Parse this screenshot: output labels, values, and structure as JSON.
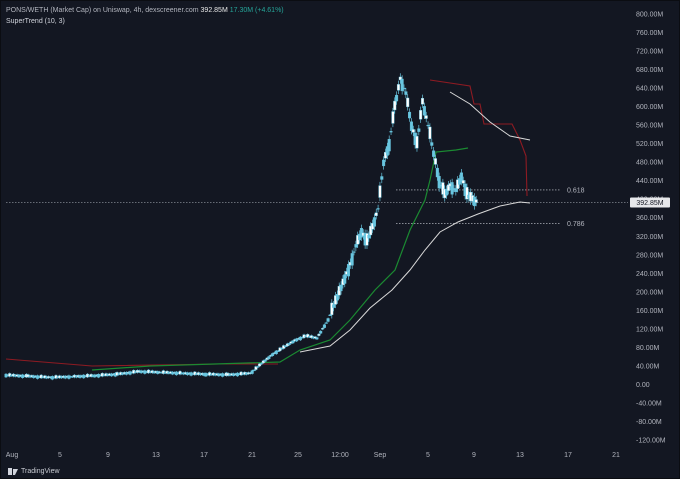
{
  "header": {
    "pair": "PONS/WETH (Market Cap) on Uniswap, 4h, dexscreener.com",
    "price": "392.85M",
    "change": "17.30M (+4.61%)",
    "indicator": "SuperTrend (10, 3)"
  },
  "footer": {
    "brand": "TradingView"
  },
  "colors": {
    "background": "#131722",
    "candle": "#69c6e0",
    "supertrend_up": "#1b8a32",
    "supertrend_down": "#8e1b23",
    "ma": "#d9d9d9",
    "fib": "#cfd3da"
  },
  "chart_data": {
    "type": "candlestick",
    "y_unit": "M",
    "y_ticks": [
      "800.00M",
      "760.00M",
      "720.00M",
      "680.00M",
      "640.00M",
      "600.00M",
      "560.00M",
      "520.00M",
      "480.00M",
      "440.00M",
      "400.00M",
      "360.00M",
      "320.00M",
      "280.00M",
      "240.00M",
      "200.00M",
      "160.00M",
      "120.00M",
      "80.00M",
      "40.00M",
      "0.00",
      "-40.00M",
      "-80.00M",
      "-120.00M"
    ],
    "ylim": [
      -120,
      800
    ],
    "x_ticks": [
      "Aug",
      "5",
      "9",
      "13",
      "17",
      "21",
      "25",
      "12:00",
      "Sep",
      "5",
      "9",
      "13",
      "17",
      "21"
    ],
    "current_price_label": "392.85M",
    "current_price": 392.85,
    "fib_levels": [
      {
        "label": "0.618",
        "value": 420
      },
      {
        "label": "0.786",
        "value": 348
      }
    ],
    "series": [
      {
        "name": "Market Cap",
        "points": [
          {
            "x": 0,
            "y": 20
          },
          {
            "x": 2,
            "y": 18
          },
          {
            "x": 4,
            "y": 15
          },
          {
            "x": 6,
            "y": 17
          },
          {
            "x": 8,
            "y": 19
          },
          {
            "x": 10,
            "y": 22
          },
          {
            "x": 12,
            "y": 28
          },
          {
            "x": 14,
            "y": 26
          },
          {
            "x": 16,
            "y": 24
          },
          {
            "x": 18,
            "y": 22
          },
          {
            "x": 20,
            "y": 21
          },
          {
            "x": 22,
            "y": 24
          },
          {
            "x": 23,
            "y": 45
          },
          {
            "x": 24,
            "y": 65
          },
          {
            "x": 25,
            "y": 80
          },
          {
            "x": 26,
            "y": 95
          },
          {
            "x": 27,
            "y": 105
          },
          {
            "x": 28,
            "y": 100
          },
          {
            "x": 29,
            "y": 140
          },
          {
            "x": 30,
            "y": 200
          },
          {
            "x": 31,
            "y": 260
          },
          {
            "x": 31.5,
            "y": 300
          },
          {
            "x": 32,
            "y": 330
          },
          {
            "x": 32.5,
            "y": 310
          },
          {
            "x": 33,
            "y": 340
          },
          {
            "x": 33.5,
            "y": 380
          },
          {
            "x": 34,
            "y": 480
          },
          {
            "x": 34.5,
            "y": 520
          },
          {
            "x": 35,
            "y": 600
          },
          {
            "x": 35.5,
            "y": 660
          },
          {
            "x": 36,
            "y": 630
          },
          {
            "x": 36.5,
            "y": 560
          },
          {
            "x": 37,
            "y": 520
          },
          {
            "x": 37.5,
            "y": 610
          },
          {
            "x": 38,
            "y": 560
          },
          {
            "x": 38.5,
            "y": 500
          },
          {
            "x": 39,
            "y": 440
          },
          {
            "x": 39.5,
            "y": 410
          },
          {
            "x": 40,
            "y": 430
          },
          {
            "x": 40.5,
            "y": 420
          },
          {
            "x": 41,
            "y": 450
          },
          {
            "x": 41.5,
            "y": 410
          },
          {
            "x": 42,
            "y": 400
          },
          {
            "x": 42.5,
            "y": 392.85
          }
        ]
      }
    ]
  }
}
